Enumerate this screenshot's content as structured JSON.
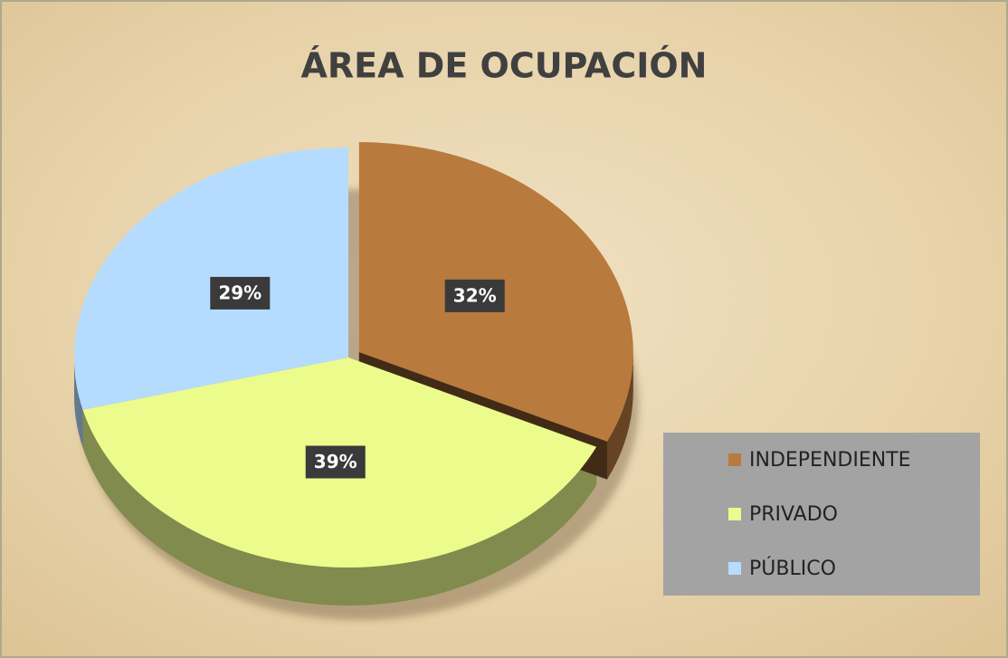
{
  "chart_data": {
    "type": "pie",
    "title": "ÁREA DE OCUPACIÓN",
    "categories": [
      "INDEPENDIENTE",
      "PRIVADO",
      "PÚBLICO"
    ],
    "values": [
      32,
      39,
      29
    ],
    "value_labels": [
      "32%",
      "39%",
      "29%"
    ],
    "colors": [
      "#b97a3e",
      "#ebfc8c",
      "#b5dcff"
    ],
    "legend": "bottom-right"
  }
}
